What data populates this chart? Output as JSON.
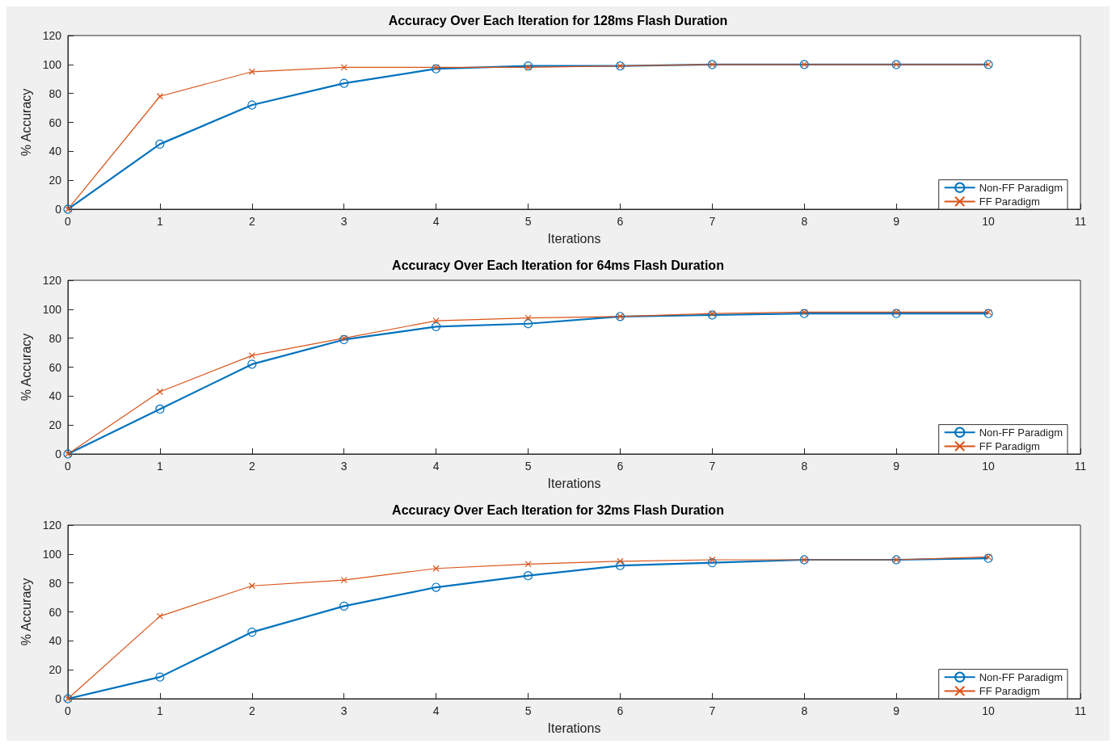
{
  "chart_data": [
    {
      "type": "line",
      "title": "Accuracy Over Each Iteration for 128ms Flash Duration",
      "xlabel": "Iterations",
      "ylabel": "% Accuracy",
      "x": [
        0,
        1,
        2,
        3,
        4,
        5,
        6,
        7,
        8,
        9,
        10
      ],
      "xlim": [
        0,
        11
      ],
      "xticks": [
        0,
        1,
        2,
        3,
        4,
        5,
        6,
        7,
        8,
        9,
        10,
        11
      ],
      "ylim": [
        0,
        120
      ],
      "yticks": [
        0,
        20,
        40,
        60,
        80,
        100,
        120
      ],
      "legend": "bottom right",
      "series": [
        {
          "name": "Non-FF Paradigm",
          "color": "#0072bd",
          "marker": "circle",
          "values": [
            0,
            45,
            72,
            87,
            97,
            99,
            99,
            100,
            100,
            100,
            100
          ]
        },
        {
          "name": "FF Paradigm",
          "color": "#d95319",
          "marker": "cross",
          "values": [
            0,
            78,
            95,
            98,
            98,
            98,
            99,
            100,
            100,
            100,
            100
          ]
        }
      ]
    },
    {
      "type": "line",
      "title": "Accuracy Over Each Iteration for 64ms Flash Duration",
      "xlabel": "Iterations",
      "ylabel": "% Accuracy",
      "x": [
        0,
        1,
        2,
        3,
        4,
        5,
        6,
        7,
        8,
        9,
        10
      ],
      "xlim": [
        0,
        11
      ],
      "xticks": [
        0,
        1,
        2,
        3,
        4,
        5,
        6,
        7,
        8,
        9,
        10,
        11
      ],
      "ylim": [
        0,
        120
      ],
      "yticks": [
        0,
        20,
        40,
        60,
        80,
        100,
        120
      ],
      "legend": "bottom right",
      "series": [
        {
          "name": "Non-FF Paradigm",
          "color": "#0072bd",
          "marker": "circle",
          "values": [
            0,
            31,
            62,
            79,
            88,
            90,
            95,
            96,
            97,
            97,
            97
          ]
        },
        {
          "name": "FF Paradigm",
          "color": "#d95319",
          "marker": "cross",
          "values": [
            0,
            43,
            68,
            80,
            92,
            94,
            95,
            97,
            98,
            98,
            98
          ]
        }
      ]
    },
    {
      "type": "line",
      "title": "Accuracy Over Each Iteration for 32ms Flash Duration",
      "xlabel": "Iterations",
      "ylabel": "% Accuracy",
      "x": [
        0,
        1,
        2,
        3,
        4,
        5,
        6,
        7,
        8,
        9,
        10
      ],
      "xlim": [
        0,
        11
      ],
      "xticks": [
        0,
        1,
        2,
        3,
        4,
        5,
        6,
        7,
        8,
        9,
        10,
        11
      ],
      "ylim": [
        0,
        120
      ],
      "yticks": [
        0,
        20,
        40,
        60,
        80,
        100,
        120
      ],
      "legend": "bottom right",
      "series": [
        {
          "name": "Non-FF Paradigm",
          "color": "#0072bd",
          "marker": "circle",
          "values": [
            0,
            15,
            46,
            64,
            77,
            85,
            92,
            94,
            96,
            96,
            97
          ]
        },
        {
          "name": "FF Paradigm",
          "color": "#d95319",
          "marker": "cross",
          "values": [
            0,
            57,
            78,
            82,
            90,
            93,
            95,
            96,
            96,
            96,
            98
          ]
        }
      ]
    }
  ]
}
